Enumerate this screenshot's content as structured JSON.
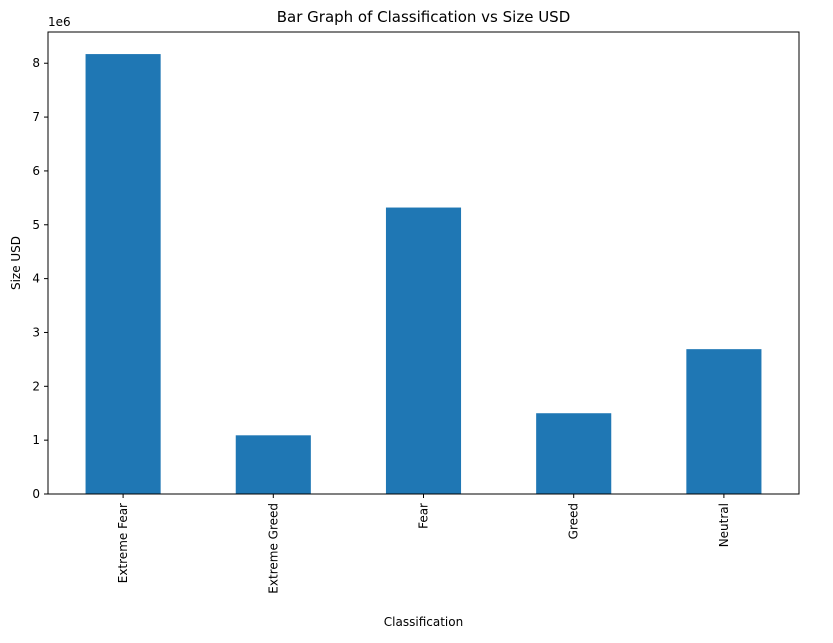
{
  "chart_data": {
    "type": "bar",
    "title": "Bar Graph of Classification vs Size USD",
    "xlabel": "Classification",
    "ylabel": "Size USD",
    "y_offset_label": "1e6",
    "y_scale": 1000000,
    "categories": [
      "Extreme Fear",
      "Extreme Greed",
      "Fear",
      "Greed",
      "Neutral"
    ],
    "values": [
      8170000,
      1090000,
      5320000,
      1500000,
      2690000
    ],
    "ylim": [
      0,
      8580000
    ],
    "y_ticks": [
      0,
      1,
      2,
      3,
      4,
      5,
      6,
      7,
      8
    ],
    "grid": false,
    "legend": "none",
    "bar_color": "#1f77b4"
  }
}
